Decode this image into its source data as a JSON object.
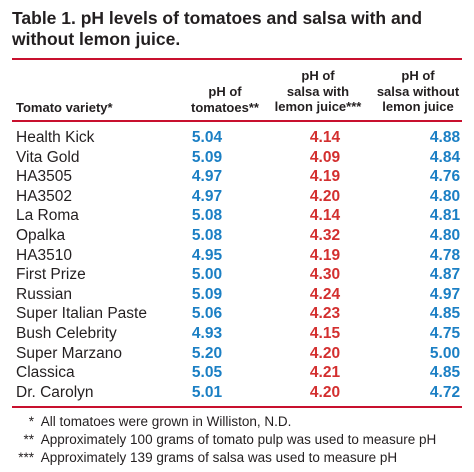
{
  "title": "Table 1.  pH levels of tomatoes and salsa with and without lemon juice.",
  "headers": {
    "variety": "Tomato variety*",
    "col1_line1": "pH of",
    "col1_line2": "tomatoes**",
    "col2_line1": "pH of",
    "col2_line2": "salsa with",
    "col2_line3": "lemon juice***",
    "col3_line1": "pH of",
    "col3_line2": "salsa without",
    "col3_line3": "lemon juice"
  },
  "rows": [
    {
      "variety": "Health Kick",
      "tomatoes": "5.04",
      "with_lemon": "4.14",
      "without_lemon": "4.88"
    },
    {
      "variety": "Vita Gold",
      "tomatoes": "5.09",
      "with_lemon": "4.09",
      "without_lemon": "4.84"
    },
    {
      "variety": "HA3505",
      "tomatoes": "4.97",
      "with_lemon": "4.19",
      "without_lemon": "4.76"
    },
    {
      "variety": "HA3502",
      "tomatoes": "4.97",
      "with_lemon": "4.20",
      "without_lemon": "4.80"
    },
    {
      "variety": "La Roma",
      "tomatoes": "5.08",
      "with_lemon": "4.14",
      "without_lemon": "4.81"
    },
    {
      "variety": "Opalka",
      "tomatoes": "5.08",
      "with_lemon": "4.32",
      "without_lemon": "4.80"
    },
    {
      "variety": "HA3510",
      "tomatoes": "4.95",
      "with_lemon": "4.19",
      "without_lemon": "4.78"
    },
    {
      "variety": "First Prize",
      "tomatoes": "5.00",
      "with_lemon": "4.30",
      "without_lemon": "4.87"
    },
    {
      "variety": "Russian",
      "tomatoes": "5.09",
      "with_lemon": "4.24",
      "without_lemon": "4.97"
    },
    {
      "variety": "Super Italian Paste",
      "tomatoes": "5.06",
      "with_lemon": "4.23",
      "without_lemon": "4.85"
    },
    {
      "variety": "Bush Celebrity",
      "tomatoes": "4.93",
      "with_lemon": "4.15",
      "without_lemon": "4.75"
    },
    {
      "variety": "Super Marzano",
      "tomatoes": "5.20",
      "with_lemon": "4.20",
      "without_lemon": "5.00"
    },
    {
      "variety": "Classica",
      "tomatoes": "5.05",
      "with_lemon": "4.21",
      "without_lemon": "4.85"
    },
    {
      "variety": "Dr. Carolyn",
      "tomatoes": "5.01",
      "with_lemon": "4.20",
      "without_lemon": "4.72"
    }
  ],
  "footnotes": [
    {
      "mark": "*",
      "text": "All tomatoes were grown in Williston, N.D."
    },
    {
      "mark": "**",
      "text": "Approximately 100 grams of tomato pulp was used to measure pH"
    },
    {
      "mark": "***",
      "text": "Approximately 139 grams of salsa was used to measure pH"
    }
  ],
  "colors": {
    "rule": "#c8102e",
    "tomatoes_values": "#1b7fc4",
    "with_lemon_values": "#d32f2f",
    "without_lemon_values": "#1b7fc4"
  }
}
